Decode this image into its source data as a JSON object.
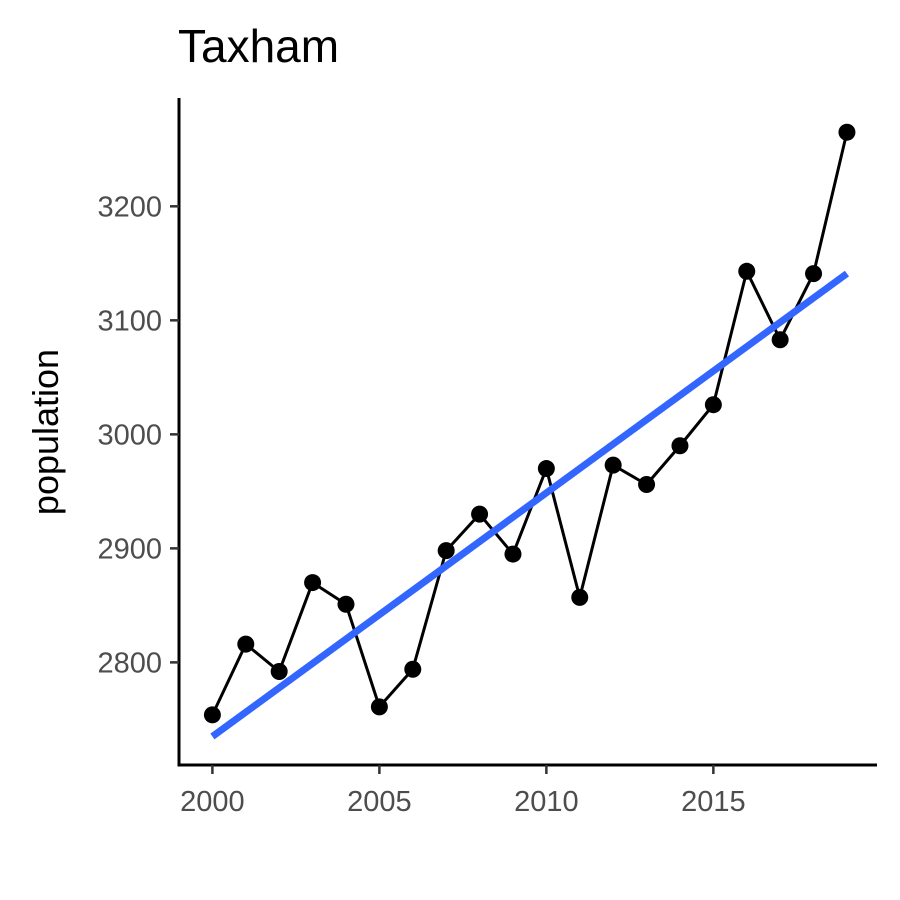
{
  "chart_data": {
    "type": "line",
    "title": "Taxham",
    "xlabel": "",
    "ylabel": "population",
    "xlim": [
      1999.0,
      2019.9
    ],
    "ylim": [
      2710,
      3295
    ],
    "x_ticks": [
      2000,
      2005,
      2010,
      2015
    ],
    "y_ticks": [
      2800,
      2900,
      3000,
      3100,
      3200
    ],
    "grid": false,
    "legend": "none",
    "series": [
      {
        "x": [
          2000,
          2001,
          2002,
          2003,
          2004,
          2005,
          2006,
          2007,
          2008,
          2009,
          2010,
          2011,
          2012,
          2013,
          2014,
          2015,
          2016,
          2017,
          2018,
          2019
        ],
        "y": [
          2754,
          2816,
          2792,
          2870,
          2851,
          2761,
          2794,
          2898,
          2930,
          2895,
          2970,
          2857,
          2973,
          2956,
          2990,
          3026,
          3143,
          3083,
          3141,
          3265
        ],
        "color": "#000000"
      }
    ],
    "trend_line": {
      "x": [
        2000,
        2019
      ],
      "y": [
        2735,
        3141
      ],
      "color": "#3366ff"
    }
  }
}
